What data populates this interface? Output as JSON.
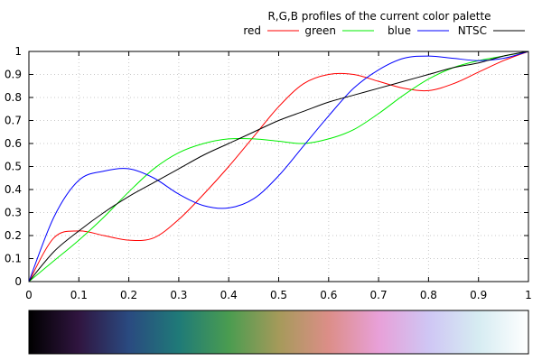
{
  "chart_data": {
    "type": "line",
    "title": "R,G,B profiles of the current color palette",
    "xlabel": "",
    "ylabel": "",
    "xlim": [
      0,
      1
    ],
    "ylim": [
      0,
      1
    ],
    "grid": true,
    "legend_position": "top-right",
    "x_ticks": [
      "0",
      "0.1",
      "0.2",
      "0.3",
      "0.4",
      "0.5",
      "0.6",
      "0.7",
      "0.8",
      "0.9",
      "1"
    ],
    "y_ticks": [
      "0",
      "0.1",
      "0.2",
      "0.3",
      "0.4",
      "0.5",
      "0.6",
      "0.7",
      "0.8",
      "0.9",
      "1"
    ],
    "x": [
      0,
      0.05,
      0.1,
      0.15,
      0.2,
      0.25,
      0.3,
      0.35,
      0.4,
      0.45,
      0.5,
      0.55,
      0.6,
      0.65,
      0.7,
      0.75,
      0.8,
      0.85,
      0.9,
      0.95,
      1.0
    ],
    "series": [
      {
        "name": "red",
        "color": "#ff0000",
        "values": [
          0,
          0.19,
          0.22,
          0.2,
          0.18,
          0.19,
          0.27,
          0.38,
          0.5,
          0.63,
          0.76,
          0.86,
          0.9,
          0.9,
          0.87,
          0.84,
          0.83,
          0.86,
          0.91,
          0.96,
          1.0
        ]
      },
      {
        "name": "green",
        "color": "#00ee00",
        "values": [
          0,
          0.09,
          0.18,
          0.28,
          0.39,
          0.49,
          0.56,
          0.6,
          0.62,
          0.62,
          0.61,
          0.6,
          0.62,
          0.66,
          0.73,
          0.81,
          0.88,
          0.93,
          0.96,
          0.98,
          1.0
        ]
      },
      {
        "name": "blue",
        "color": "#0000ff",
        "values": [
          0,
          0.28,
          0.44,
          0.48,
          0.49,
          0.45,
          0.38,
          0.33,
          0.32,
          0.36,
          0.46,
          0.59,
          0.72,
          0.84,
          0.92,
          0.97,
          0.98,
          0.97,
          0.96,
          0.97,
          1.0
        ]
      },
      {
        "name": "NTSC",
        "color": "#000000",
        "values": [
          0,
          0.13,
          0.22,
          0.3,
          0.37,
          0.43,
          0.49,
          0.55,
          0.6,
          0.65,
          0.7,
          0.74,
          0.78,
          0.81,
          0.84,
          0.87,
          0.9,
          0.93,
          0.95,
          0.98,
          1.0
        ]
      }
    ]
  }
}
